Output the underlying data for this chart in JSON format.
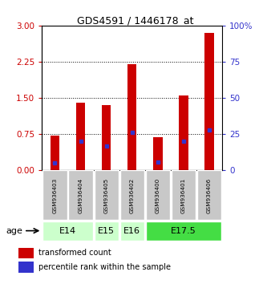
{
  "title": "GDS4591 / 1446178_at",
  "samples": [
    "GSM936403",
    "GSM936404",
    "GSM936405",
    "GSM936402",
    "GSM936400",
    "GSM936401",
    "GSM936406"
  ],
  "bar_heights": [
    0.72,
    1.4,
    1.35,
    2.2,
    0.68,
    1.55,
    2.85
  ],
  "percentile_values": [
    5,
    20,
    17,
    26,
    6,
    20,
    28
  ],
  "bar_color": "#cc0000",
  "dot_color": "#3333cc",
  "ylim_left": [
    0,
    3
  ],
  "ylim_right": [
    0,
    100
  ],
  "yticks_left": [
    0,
    0.75,
    1.5,
    2.25,
    3
  ],
  "yticks_right": [
    0,
    25,
    50,
    75,
    100
  ],
  "age_groups": [
    {
      "label": "E14",
      "start": 0,
      "end": 1,
      "color": "#ccffcc"
    },
    {
      "label": "E15",
      "start": 2,
      "end": 2,
      "color": "#ccffcc"
    },
    {
      "label": "E16",
      "start": 3,
      "end": 3,
      "color": "#ccffcc"
    },
    {
      "label": "E17.5",
      "start": 4,
      "end": 6,
      "color": "#44dd44"
    }
  ],
  "sample_box_color": "#c8c8c8",
  "sample_box_edge": "#ffffff",
  "legend_items": [
    {
      "label": "transformed count",
      "color": "#cc0000"
    },
    {
      "label": "percentile rank within the sample",
      "color": "#3333cc"
    }
  ],
  "left_tick_color": "#cc0000",
  "right_tick_color": "#3333cc",
  "plot_bg": "#ffffff",
  "fig_bg": "#ffffff"
}
